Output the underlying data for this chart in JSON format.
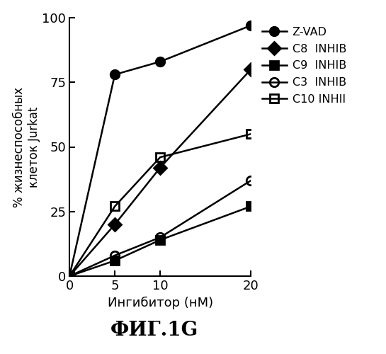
{
  "x": [
    0,
    5,
    10,
    20
  ],
  "series": [
    {
      "label": "Z-VAD",
      "y": [
        0,
        78,
        83,
        97
      ],
      "marker": "o",
      "fillstyle": "full",
      "color": "black",
      "linestyle": "-"
    },
    {
      "label": "C8  INHIB",
      "y": [
        0,
        20,
        42,
        80
      ],
      "marker": "D",
      "fillstyle": "full",
      "color": "black",
      "linestyle": "-"
    },
    {
      "label": "C9  INHIB",
      "y": [
        0,
        6,
        14,
        27
      ],
      "marker": "s",
      "fillstyle": "full",
      "color": "black",
      "linestyle": "-"
    },
    {
      "label": "C3  INHIB",
      "y": [
        0,
        8,
        15,
        37
      ],
      "marker": "o",
      "fillstyle": "none",
      "color": "black",
      "linestyle": "-"
    },
    {
      "label": "C10 INHII",
      "y": [
        0,
        27,
        46,
        55
      ],
      "marker": "s",
      "fillstyle": "none",
      "color": "black",
      "linestyle": "-"
    }
  ],
  "xlabel": "Ингибитор (нМ)",
  "ylabel": "% жизнеспособных\nклеток Jurkat",
  "fig_title": "ФИГ.1G",
  "ylim": [
    0,
    100
  ],
  "xlim": [
    0,
    20
  ],
  "yticks": [
    0,
    25,
    50,
    75,
    100
  ],
  "xticks": [
    0,
    5,
    10,
    20
  ],
  "markersize": 9,
  "linewidth": 1.8
}
